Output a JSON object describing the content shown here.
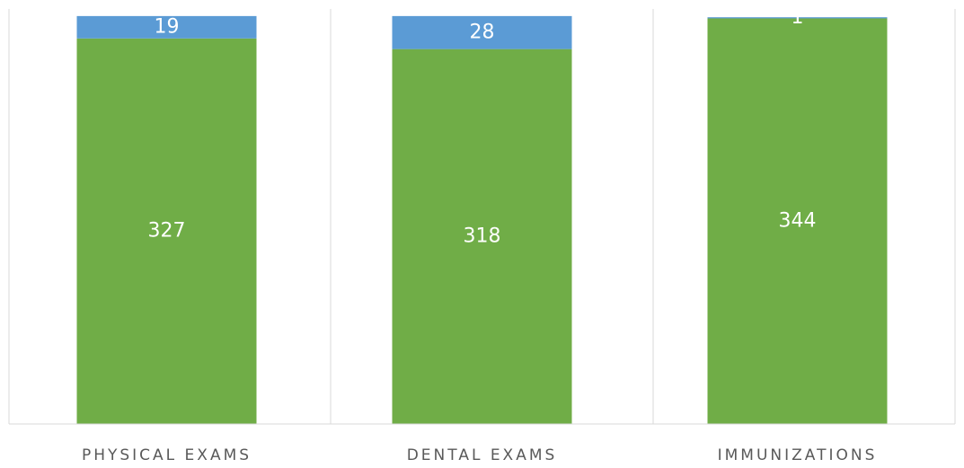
{
  "chart_data": {
    "type": "stacked_bar",
    "categories": [
      "PHYSICAL EXAMS",
      "DENTAL EXAMS",
      "IMMUNIZATIONS"
    ],
    "series": [
      {
        "color": "#70ad47",
        "values": [
          327,
          318,
          344
        ]
      },
      {
        "color": "#5b9bd5",
        "values": [
          19,
          28,
          1
        ]
      }
    ],
    "ylim": [
      0,
      352
    ]
  }
}
